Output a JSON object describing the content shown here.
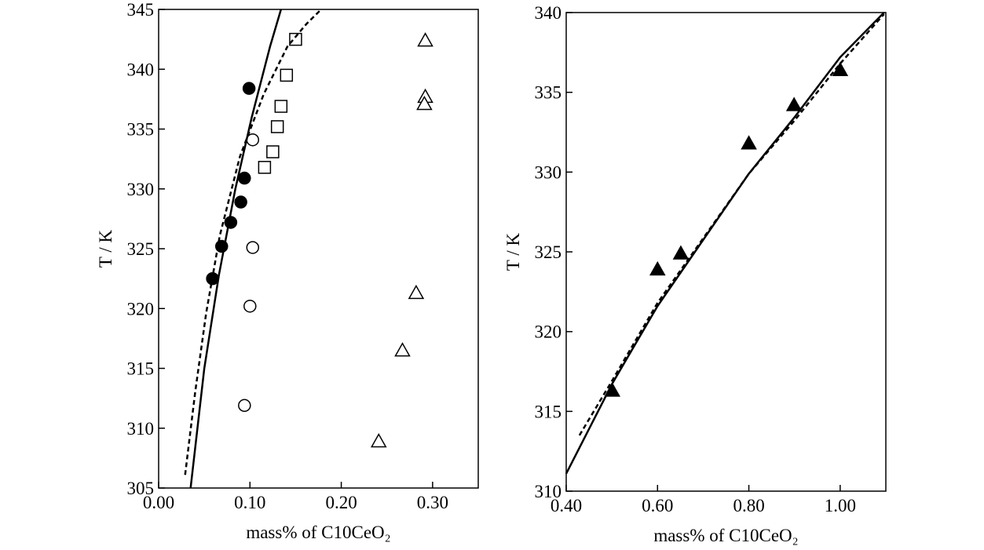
{
  "chart_data": [
    {
      "type": "scatter",
      "xlabel": "mass% of C10CeO₂",
      "ylabel": "T / K",
      "xlim": [
        0,
        0.35
      ],
      "ylim": [
        305,
        345
      ],
      "xticks": [
        {
          "value": 0,
          "label": "0.00"
        },
        {
          "value": 0.1,
          "label": "0.10"
        },
        {
          "value": 0.2,
          "label": "0.20"
        },
        {
          "value": 0.3,
          "label": "0.30"
        }
      ],
      "yticks": [
        305,
        310,
        315,
        320,
        325,
        330,
        335,
        340,
        345
      ],
      "series": [
        {
          "marker": "circle",
          "filled": true,
          "color": "#000000",
          "x": [
            0.059,
            0.069,
            0.079,
            0.09,
            0.094,
            0.099
          ],
          "values": [
            322.5,
            325.2,
            327.2,
            328.9,
            330.9,
            338.4
          ]
        },
        {
          "marker": "circle",
          "filled": false,
          "color": "#000000",
          "x": [
            0.103,
            0.103,
            0.1,
            0.094
          ],
          "values": [
            334.1,
            325.1,
            320.2,
            311.9
          ]
        },
        {
          "marker": "square",
          "filled": false,
          "color": "#000000",
          "x": [
            0.15,
            0.14,
            0.134,
            0.13,
            0.125,
            0.116
          ],
          "values": [
            342.5,
            339.5,
            336.9,
            335.2,
            333.1,
            331.8
          ]
        },
        {
          "marker": "triangle",
          "filled": false,
          "color": "#000000",
          "x": [
            0.292,
            0.292,
            0.291,
            0.282,
            0.267,
            0.241
          ],
          "values": [
            342.4,
            337.7,
            337.1,
            321.3,
            316.5,
            308.9
          ]
        },
        {
          "line": "solid",
          "color": "#000000",
          "x": [
            0.035,
            0.05,
            0.066,
            0.084,
            0.102,
            0.122,
            0.134
          ],
          "values": [
            305,
            315,
            322.8,
            330,
            336,
            341.9,
            345
          ]
        },
        {
          "line": "dashed",
          "color": "#000000",
          "x": [
            0.029,
            0.04,
            0.052,
            0.067,
            0.089,
            0.115,
            0.141,
            0.162,
            0.178
          ],
          "values": [
            306.1,
            313,
            319.6,
            326.1,
            332.7,
            337.9,
            341.9,
            343.8,
            345
          ]
        }
      ]
    },
    {
      "type": "scatter",
      "xlabel": "mass% of C10CeO₂",
      "ylabel": "T / K",
      "xlim": [
        0.4,
        1.1
      ],
      "ylim": [
        310,
        340
      ],
      "xticks": [
        {
          "value": 0.4,
          "label": "0.40"
        },
        {
          "value": 0.6,
          "label": "0.60"
        },
        {
          "value": 0.8,
          "label": "0.80"
        },
        {
          "value": 1.0,
          "label": "1.00"
        }
      ],
      "yticks": [
        310,
        315,
        320,
        325,
        330,
        335,
        340
      ],
      "series": [
        {
          "marker": "triangle",
          "filled": true,
          "color": "#000000",
          "x": [
            0.501,
            0.6,
            0.651,
            0.8,
            0.899,
            1.0
          ],
          "values": [
            316.3,
            323.9,
            324.9,
            331.8,
            334.2,
            336.4
          ]
        },
        {
          "line": "solid",
          "color": "#000000",
          "x": [
            0.4,
            0.5,
            0.6,
            0.706,
            0.8,
            0.899,
            1.0,
            1.096
          ],
          "values": [
            311.1,
            316.7,
            321.6,
            326,
            329.9,
            333.4,
            337.2,
            340
          ]
        },
        {
          "line": "dashed",
          "color": "#000000",
          "x": [
            0.429,
            0.5,
            0.6,
            0.8,
            0.899,
            1.0,
            1.096
          ],
          "values": [
            313.5,
            316.9,
            321.8,
            329.9,
            333.2,
            336.8,
            339.9
          ]
        }
      ]
    }
  ]
}
